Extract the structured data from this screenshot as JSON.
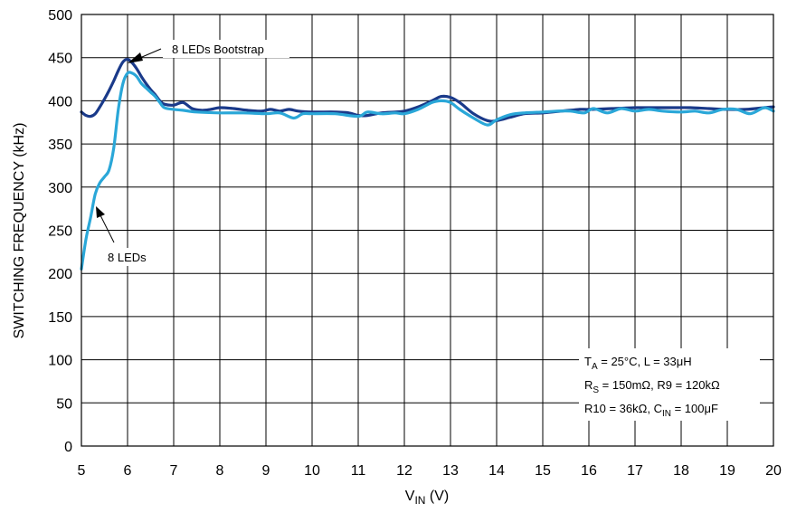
{
  "chart_data": {
    "type": "line",
    "title": "",
    "xlabel": {
      "main": "V",
      "sub": "IN",
      "unit": " (V)"
    },
    "ylabel": "SWITCHING FREQUENCY (kHz)",
    "xlim": [
      5,
      20
    ],
    "ylim": [
      0,
      500
    ],
    "xticks": [
      "5",
      "6",
      "7",
      "8",
      "9",
      "10",
      "11",
      "12",
      "13",
      "14",
      "15",
      "16",
      "17",
      "18",
      "19",
      "20"
    ],
    "yticks": [
      "0",
      "50",
      "100",
      "150",
      "200",
      "250",
      "300",
      "350",
      "400",
      "450",
      "500"
    ],
    "grid": true,
    "colors": {
      "bootstrap": "#1a3a8a",
      "leds": "#2aa7d8",
      "grid": "#000000"
    },
    "series": [
      {
        "name": "8 LEDs Bootstrap",
        "color": "#1a3a8a",
        "x": [
          5.0,
          5.1,
          5.2,
          5.3,
          5.4,
          5.5,
          5.6,
          5.7,
          5.8,
          5.9,
          6.0,
          6.1,
          6.2,
          6.3,
          6.4,
          6.5,
          6.6,
          6.7,
          6.8,
          7.0,
          7.2,
          7.4,
          7.6,
          7.8,
          8.0,
          8.3,
          8.6,
          8.9,
          9.1,
          9.3,
          9.5,
          9.7,
          10.0,
          10.5,
          10.8,
          11.0,
          11.2,
          11.5,
          11.8,
          12.0,
          12.3,
          12.6,
          12.8,
          13.0,
          13.2,
          13.5,
          13.8,
          14.0,
          14.3,
          14.6,
          15.0,
          15.4,
          15.8,
          16.0,
          16.5,
          17.0,
          17.4,
          17.8,
          18.2,
          18.6,
          19.0,
          19.4,
          19.8,
          20.0
        ],
        "values": [
          387,
          383,
          382,
          385,
          393,
          402,
          412,
          423,
          435,
          445,
          448,
          444,
          437,
          428,
          420,
          413,
          407,
          400,
          396,
          395,
          398,
          391,
          389,
          390,
          392,
          391,
          389,
          388,
          390,
          388,
          390,
          388,
          387,
          387,
          386,
          383,
          383,
          386,
          387,
          388,
          393,
          400,
          405,
          404,
          398,
          385,
          377,
          377,
          381,
          385,
          386,
          388,
          390,
          390,
          391,
          392,
          392,
          392,
          392,
          391,
          390,
          390,
          392,
          393
        ]
      },
      {
        "name": "8 LEDs",
        "color": "#2aa7d8",
        "x": [
          5.0,
          5.1,
          5.2,
          5.3,
          5.4,
          5.5,
          5.6,
          5.7,
          5.8,
          5.9,
          6.0,
          6.1,
          6.2,
          6.3,
          6.4,
          6.5,
          6.6,
          6.7,
          6.8,
          7.0,
          7.2,
          7.5,
          8.0,
          8.5,
          9.0,
          9.3,
          9.6,
          9.8,
          10.0,
          10.5,
          11.0,
          11.2,
          11.5,
          11.8,
          12.0,
          12.3,
          12.6,
          12.8,
          13.0,
          13.2,
          13.5,
          13.8,
          14.0,
          14.3,
          14.6,
          15.0,
          15.3,
          15.6,
          15.9,
          16.1,
          16.4,
          16.7,
          17.0,
          17.3,
          17.6,
          18.0,
          18.3,
          18.6,
          18.9,
          19.2,
          19.5,
          19.8,
          20.0
        ],
        "values": [
          205,
          240,
          265,
          292,
          305,
          312,
          320,
          345,
          390,
          420,
          432,
          432,
          428,
          420,
          415,
          410,
          405,
          398,
          392,
          390,
          389,
          387,
          386,
          386,
          385,
          386,
          380,
          385,
          385,
          385,
          382,
          387,
          385,
          386,
          385,
          390,
          398,
          400,
          398,
          390,
          380,
          372,
          378,
          384,
          386,
          387,
          388,
          388,
          386,
          391,
          386,
          391,
          388,
          390,
          388,
          387,
          388,
          386,
          390,
          390,
          385,
          392,
          388
        ]
      }
    ],
    "annotations": [
      {
        "text": "8 LEDs Bootstrap",
        "x": 6.0,
        "y": 448
      },
      {
        "text": "8 LEDs",
        "x": 5.4,
        "y": 300
      }
    ],
    "conditions": {
      "line1": {
        "a": "T",
        "a_sub": "A",
        "b": " = 25°C, L = 33μH"
      },
      "line2": {
        "a": "R",
        "a_sub": "S",
        "b": " = 150mΩ, R9 = 120kΩ"
      },
      "line3": {
        "a": "R10 = 36kΩ, C",
        "a_sub": "IN",
        "b": " = 100μF"
      }
    }
  }
}
